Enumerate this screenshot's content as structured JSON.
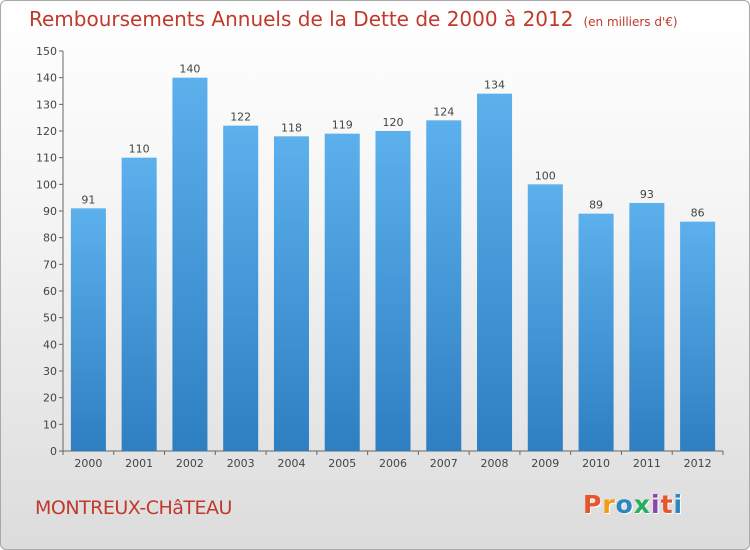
{
  "header": {
    "title": "Remboursements Annuels de la Dette de 2000 à 2012",
    "unit": "(en milliers d'€)"
  },
  "footer": {
    "city": "MONTREUX-CHâTEAU",
    "logo": "Proxiti",
    "logo_colors": [
      "#e8542c",
      "#f39c12",
      "#2e86c1",
      "#27ae60",
      "#8e44ad",
      "#e8542c",
      "#2e86c1"
    ]
  },
  "chart_data": {
    "type": "bar",
    "title": "Remboursements Annuels de la Dette de 2000 à 2012",
    "subtitle": "(en milliers d'€)",
    "xlabel": "",
    "ylabel": "",
    "categories": [
      "2000",
      "2001",
      "2002",
      "2003",
      "2004",
      "2005",
      "2006",
      "2007",
      "2008",
      "2009",
      "2010",
      "2011",
      "2012"
    ],
    "values": [
      91,
      110,
      140,
      122,
      118,
      119,
      120,
      124,
      134,
      100,
      89,
      93,
      86
    ],
    "ylim": [
      0,
      150
    ],
    "ytick_step": 10,
    "grid": false,
    "bar_color": "#4a9fe0",
    "axis_color": "#666666"
  }
}
